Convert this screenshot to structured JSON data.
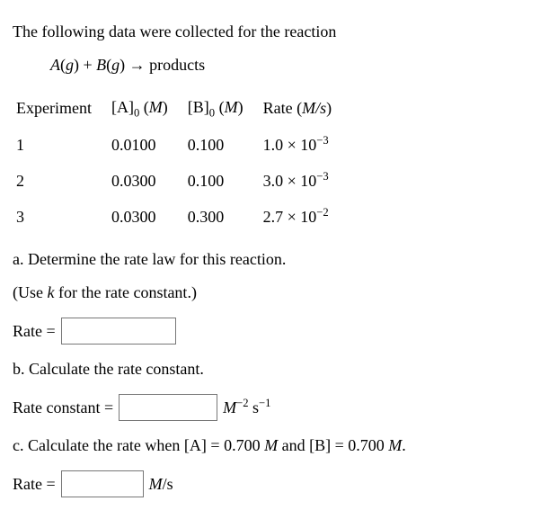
{
  "intro": "The following data were collected for the reaction",
  "reaction": {
    "lhs_a": "A",
    "phase_a": "g",
    "lhs_b": "B",
    "phase_b": "g",
    "arrow": "→",
    "products": "products"
  },
  "table": {
    "headers": {
      "exp": "Experiment",
      "a0_pre": "[A]",
      "a0_sub": "0",
      "a0_unit": "M",
      "b0_pre": "[B]",
      "b0_sub": "0",
      "b0_unit": "M",
      "rate_label": "Rate",
      "rate_unit": "M/s"
    },
    "rows": [
      {
        "exp": "1",
        "a0": "0.0100",
        "b0": "0.100",
        "rate_coef": "1.0 × 10",
        "rate_exp": "−3"
      },
      {
        "exp": "2",
        "a0": "0.0300",
        "b0": "0.100",
        "rate_coef": "3.0 × 10",
        "rate_exp": "−3"
      },
      {
        "exp": "3",
        "a0": "0.0300",
        "b0": "0.300",
        "rate_coef": "2.7 × 10",
        "rate_exp": "−2"
      }
    ]
  },
  "partA": {
    "prompt": "a. Determine the rate law for this reaction.",
    "hint_pre": "(Use ",
    "hint_var": "k",
    "hint_post": " for the rate constant.)",
    "label": "Rate ="
  },
  "partB": {
    "prompt": "b. Calculate the rate constant.",
    "label": "Rate constant =",
    "unit_M": "M",
    "unit_Mexp": "−2",
    "unit_s": " s",
    "unit_sexp": "−1"
  },
  "partC": {
    "prompt_pre": "c. Calculate the rate when ",
    "A_label": "[A]",
    "eq": " = ",
    "A_val": "0.700 ",
    "A_unit": "M",
    "and": " and ",
    "B_label": "[B]",
    "B_val": "0.700 ",
    "B_unit": "M",
    "period": ".",
    "label": "Rate =",
    "unit_M": "M",
    "unit_slash": "/s"
  }
}
